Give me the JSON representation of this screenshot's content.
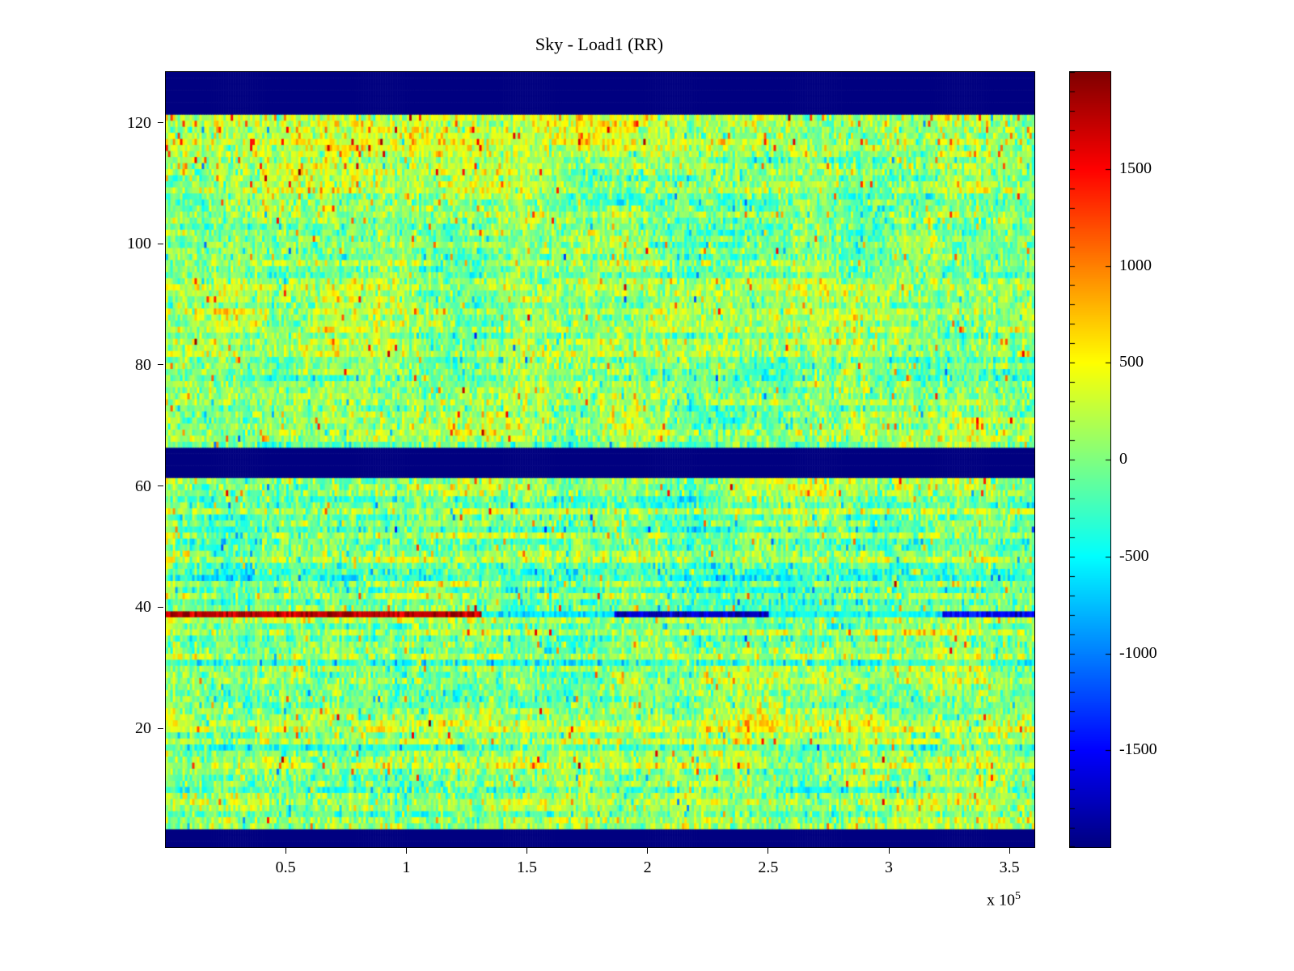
{
  "figure": {
    "background": "#ffffff",
    "axis_color": "#000000"
  },
  "chart_data": {
    "type": "heatmap",
    "title": "Sky - Load1 (RR)",
    "xlabel": "",
    "ylabel": "",
    "colormap": "jet",
    "xlim": [
      0,
      360000
    ],
    "ylim": [
      0.5,
      128.5
    ],
    "clim": [
      -2000,
      2000
    ],
    "x_offset_label": {
      "prefix": "x 10",
      "exponent": "5"
    },
    "x_ticks": [
      {
        "value": 50000,
        "label": "0.5"
      },
      {
        "value": 100000,
        "label": "1"
      },
      {
        "value": 150000,
        "label": "1.5"
      },
      {
        "value": 200000,
        "label": "2"
      },
      {
        "value": 250000,
        "label": "2.5"
      },
      {
        "value": 300000,
        "label": "3"
      },
      {
        "value": 350000,
        "label": "3.5"
      }
    ],
    "y_ticks": [
      {
        "value": 20,
        "label": "20"
      },
      {
        "value": 40,
        "label": "40"
      },
      {
        "value": 60,
        "label": "60"
      },
      {
        "value": 80,
        "label": "80"
      },
      {
        "value": 100,
        "label": "100"
      },
      {
        "value": 120,
        "label": "120"
      }
    ],
    "colorbar_ticks": [
      {
        "value": 1500,
        "label": "1500"
      },
      {
        "value": 1000,
        "label": "1000"
      },
      {
        "value": 500,
        "label": "500"
      },
      {
        "value": 0,
        "label": "0"
      },
      {
        "value": -500,
        "label": "-500"
      },
      {
        "value": -1000,
        "label": "-1000"
      },
      {
        "value": -1500,
        "label": "-1500"
      }
    ],
    "colorbar_minor_tick_step": 100,
    "grid": {
      "rows": 128,
      "cols": 360
    },
    "masked_row_bands": [
      {
        "from": 122,
        "to": 128
      },
      {
        "from": 62,
        "to": 66
      },
      {
        "from": 1,
        "to": 3
      }
    ],
    "anomaly_row": {
      "row": 39,
      "segments": [
        {
          "x_from": 0,
          "x_to": 131000,
          "value": 1750
        },
        {
          "x_from": 131000,
          "x_to": 186000,
          "value": -550
        },
        {
          "x_from": 186000,
          "x_to": 250000,
          "value": -1750
        },
        {
          "x_from": 250000,
          "x_to": 322000,
          "value": -450
        },
        {
          "x_from": 322000,
          "x_to": 360000,
          "value": -1500
        }
      ]
    },
    "noise": {
      "seed": 1337,
      "mean": 55,
      "cell_std": 235,
      "row_streak_std_upper": 95,
      "row_streak_std_lower": 150,
      "row_block_std": 75,
      "col_streak_std": 55,
      "blob_std": 125,
      "hot_pixel_prob": 0.013,
      "cold_pixel_prob": 0.011,
      "regions": [
        {
          "rows": [
            117,
            121
          ],
          "cols": [
            0,
            359
          ],
          "bias": 170,
          "hot_prob": 0.03
        },
        {
          "rows": [
            108,
            116
          ],
          "cols": [
            0,
            359
          ],
          "bias": 55,
          "hot_prob": 0
        },
        {
          "rows": [
            106,
            121
          ],
          "cols": [
            0,
            130
          ],
          "bias": 70,
          "hot_prob": 0.045
        },
        {
          "rows": [
            114,
            121
          ],
          "cols": [
            290,
            359
          ],
          "bias": 70,
          "hot_prob": 0.055
        },
        {
          "rows": [
            44,
            61
          ],
          "cols": [
            0,
            359
          ],
          "bias": -60,
          "hot_prob": 0
        },
        {
          "rows": [
            56,
            61
          ],
          "cols": [
            0,
            359
          ],
          "bias": 0,
          "hot_prob": 0.02
        }
      ]
    }
  }
}
